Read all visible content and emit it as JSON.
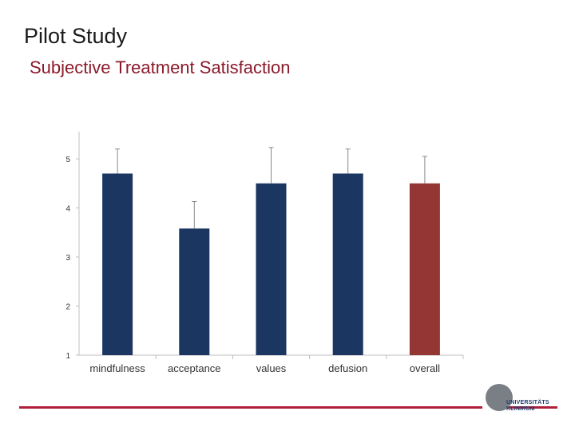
{
  "slide": {
    "title": "Pilot Study",
    "subtitle": "Subjective Treatment Satisfaction"
  },
  "colors": {
    "primary_bar": "#1b3660",
    "highlight_bar": "#943634",
    "subtitle": "#8b1a2b",
    "footer_line": "#b01e3a"
  },
  "logo": {
    "line1": "UNIVERSITÄTS",
    "line2": "KLINIKUM"
  },
  "chart_data": {
    "type": "bar",
    "title": "",
    "xlabel": "",
    "ylabel": "",
    "ylim": [
      1,
      5.5
    ],
    "yticks": [
      1,
      2,
      3,
      4,
      5
    ],
    "grid": false,
    "categories": [
      "mindfulness",
      "acceptance",
      "values",
      "defusion",
      "overall"
    ],
    "values": [
      4.7,
      3.58,
      4.5,
      4.7,
      4.5
    ],
    "error": [
      0.5,
      0.55,
      0.73,
      0.5,
      0.55
    ],
    "bar_colors": [
      "primary",
      "primary",
      "primary",
      "primary",
      "highlight"
    ]
  }
}
